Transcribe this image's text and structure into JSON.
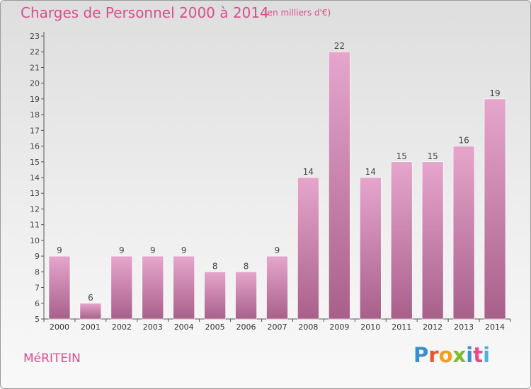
{
  "header": {
    "title": "Charges de Personnel 2000 à 2014",
    "subtitle": "(en milliers d'€)"
  },
  "footer": {
    "town": "MéRITEIN",
    "logo": "Proxiti",
    "logo_colors": [
      "#3a8fd0",
      "#e9572b",
      "#f0a020",
      "#7dbb2a",
      "#3a8fd0",
      "#e94a8a",
      "#4bb3e0"
    ]
  },
  "colors": {
    "accent": "#d94d8e",
    "bar_top": "#e6a6cc",
    "bar_bottom": "#a8608a",
    "axis": "#555555"
  },
  "chart_data": {
    "type": "bar",
    "categories": [
      "2000",
      "2001",
      "2002",
      "2003",
      "2004",
      "2005",
      "2006",
      "2007",
      "2008",
      "2009",
      "2010",
      "2011",
      "2012",
      "2013",
      "2014"
    ],
    "values": [
      9,
      6,
      9,
      9,
      9,
      8,
      8,
      9,
      14,
      22,
      14,
      15,
      15,
      16,
      19
    ],
    "ylim": [
      5,
      23
    ],
    "yticks": [
      5,
      6,
      7,
      8,
      9,
      10,
      11,
      12,
      13,
      14,
      15,
      16,
      17,
      18,
      19,
      20,
      21,
      22,
      23
    ],
    "xlabel": "",
    "ylabel": "",
    "grid": false,
    "data_labels": true
  }
}
